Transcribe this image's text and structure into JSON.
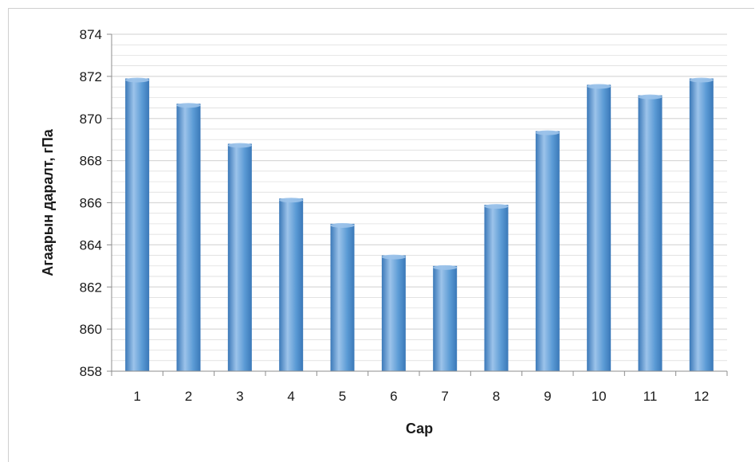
{
  "chart_data": {
    "type": "bar",
    "categories": [
      "1",
      "2",
      "3",
      "4",
      "5",
      "6",
      "7",
      "8",
      "9",
      "10",
      "11",
      "12"
    ],
    "values": [
      871.9,
      870.7,
      868.8,
      866.2,
      865.0,
      863.5,
      863.0,
      865.9,
      869.4,
      871.6,
      871.1,
      871.9
    ],
    "title": "",
    "xlabel": "Сар",
    "ylabel": "Агаарын даралт, гПа",
    "ylim": [
      858,
      874
    ],
    "yticks": [
      "858",
      "860",
      "862",
      "864",
      "866",
      "868",
      "870",
      "872",
      "874"
    ],
    "grid": true,
    "legend": "none",
    "bar_color": "#5b9bd5",
    "bar_color_dark": "#3a78b8",
    "bar_color_light": "#9cc3ea",
    "grid_color": "#d9d9d9",
    "axis_color": "#8c8c8c"
  }
}
